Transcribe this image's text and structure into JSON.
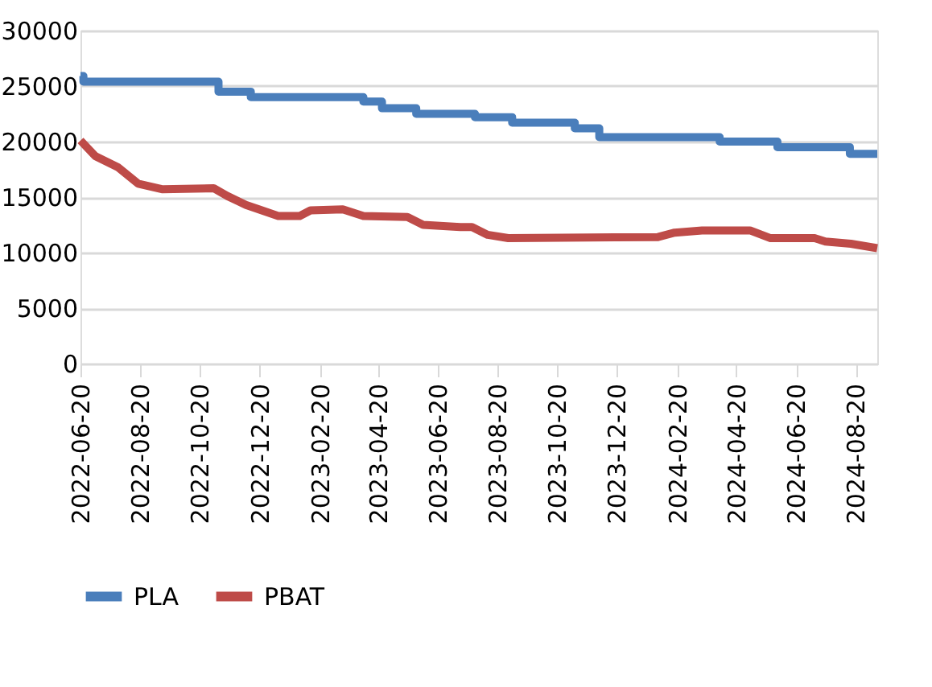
{
  "chart_data": {
    "type": "line",
    "xlim": [
      "2022-06-20",
      "2024-09-11"
    ],
    "xticks": [
      "2022-06-20",
      "2022-08-20",
      "2022-10-20",
      "2022-12-20",
      "2023-02-20",
      "2023-04-20",
      "2023-06-20",
      "2023-08-20",
      "2023-10-20",
      "2023-12-20",
      "2024-02-20",
      "2024-04-20",
      "2024-06-20",
      "2024-08-20"
    ],
    "ylim": [
      0,
      30000
    ],
    "yticks": [
      0,
      5000,
      10000,
      15000,
      20000,
      25000,
      30000
    ],
    "grid": "y",
    "legend": "bottom",
    "marker": "none",
    "line_style": "solid",
    "series": [
      {
        "name": "PLA",
        "type": "step",
        "color": "#4a7ebb",
        "x": [
          "2022-06-20",
          "2022-06-23",
          "2022-11-08",
          "2022-12-11",
          "2023-04-05",
          "2023-04-24",
          "2023-05-29",
          "2023-07-28",
          "2023-09-04",
          "2023-11-07",
          "2023-12-02",
          "2024-04-03",
          "2024-06-01",
          "2024-08-14",
          "2024-09-11"
        ],
        "values": [
          25900,
          25400,
          24500,
          24000,
          23600,
          23000,
          22500,
          22200,
          21700,
          21200,
          20400,
          20000,
          19500,
          18900,
          18900
        ]
      },
      {
        "name": "PBAT",
        "color": "#be4b48",
        "x": [
          "2022-06-20",
          "2022-07-05",
          "2022-07-28",
          "2022-08-18",
          "2022-09-12",
          "2022-11-03",
          "2022-11-17",
          "2022-12-06",
          "2023-01-08",
          "2023-01-30",
          "2023-02-10",
          "2023-03-15",
          "2023-04-05",
          "2023-05-20",
          "2023-06-05",
          "2023-07-13",
          "2023-07-25",
          "2023-08-10",
          "2023-08-31",
          "2024-01-31",
          "2024-02-17",
          "2024-03-16",
          "2024-05-04",
          "2024-05-25",
          "2024-07-09",
          "2024-07-20",
          "2024-08-15",
          "2024-09-11"
        ],
        "values": [
          20100,
          18700,
          17700,
          16200,
          15700,
          15800,
          15100,
          14300,
          13300,
          13300,
          13800,
          13900,
          13300,
          13200,
          12500,
          12300,
          12300,
          11600,
          11300,
          11400,
          11800,
          12000,
          12000,
          11300,
          11300,
          11000,
          10800,
          10400
        ]
      }
    ]
  }
}
